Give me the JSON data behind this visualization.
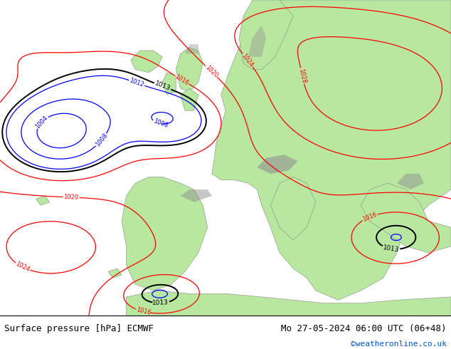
{
  "title_left": "Surface pressure [hPa] ECMWF",
  "title_right": "Mo 27-05-2024 06:00 UTC (06+48)",
  "copyright": "©weatheronline.co.uk",
  "ocean_color": "#e8e8e8",
  "land_color": "#b8e8a0",
  "terrain_color": "#a0a0a0",
  "fig_width": 6.34,
  "fig_height": 4.9,
  "dpi": 100,
  "bottom_bar_color": "#ffffff",
  "bottom_bar_height": 0.095,
  "title_fontsize": 9,
  "copyright_fontsize": 8,
  "copyright_color": "#0055cc"
}
